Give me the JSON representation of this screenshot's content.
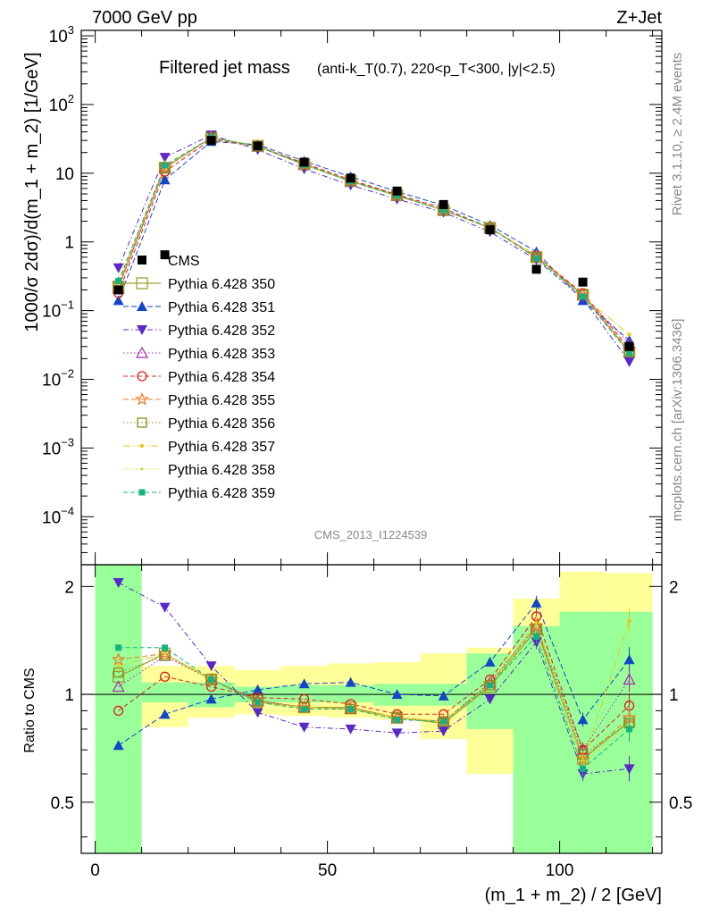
{
  "header": {
    "left": "7000 GeV pp",
    "right": "Z+Jet"
  },
  "side_labels": {
    "rivet": "Rivet 3.1.10, ≥ 2.4M events",
    "mcplots": "mcplots.cern.ch [arXiv:1306.3436]"
  },
  "watermark": "CMS_2013_I1224539",
  "chart_data": {
    "type": "line",
    "title": "Filtered jet mass",
    "title_detail": "(anti-k_T(0.7), 220<p_T<300, |y|<2.5)",
    "xlabel": "(m_1 + m_2) / 2 [GeV]",
    "ylabel": "1000/σ 2dσ)/d(m_1 + m_2) [1/GeV]",
    "ratio_ylabel": "Ratio to CMS",
    "xlim": [
      -3,
      122
    ],
    "ylim": [
      2e-05,
      1200
    ],
    "ylog": true,
    "ratio_ylim": [
      0.36,
      2.3
    ],
    "x_ticks": [
      0,
      50,
      100
    ],
    "y_ticks": [
      "10^-4",
      "10^-3",
      "10^-2",
      "10^-1",
      "1",
      "10",
      "10^2",
      "10^3"
    ],
    "ratio_ticks": [
      "0.5",
      "1",
      "2"
    ],
    "x": [
      5,
      15,
      25,
      35,
      45,
      55,
      65,
      75,
      85,
      95,
      105,
      115
    ],
    "data": {
      "name": "CMS",
      "color": "#000000",
      "values": [
        0.2,
        0.65,
        30,
        25,
        14.5,
        8.5,
        5.5,
        3.5,
        1.5,
        0.4,
        0.26,
        0.03
      ],
      "band_inner": [
        [
          0,
          10,
          0.36,
          2.3
        ],
        [
          10,
          20,
          0.95,
          1.08
        ],
        [
          20,
          30,
          0.92,
          1.08
        ],
        [
          30,
          40,
          0.95,
          1.05
        ],
        [
          40,
          50,
          0.95,
          1.06
        ],
        [
          50,
          60,
          0.95,
          1.06
        ],
        [
          60,
          70,
          0.93,
          1.07
        ],
        [
          70,
          80,
          0.93,
          1.07
        ],
        [
          80,
          90,
          0.8,
          1.3
        ],
        [
          90,
          100,
          0.36,
          1.55
        ],
        [
          100,
          110,
          0.36,
          1.7
        ],
        [
          110,
          120,
          0.36,
          1.7
        ]
      ],
      "band_outer": [
        [
          0,
          10,
          0.36,
          2.3
        ],
        [
          10,
          20,
          0.81,
          1.2
        ],
        [
          20,
          30,
          0.86,
          1.2
        ],
        [
          30,
          40,
          0.88,
          1.17
        ],
        [
          40,
          50,
          0.87,
          1.2
        ],
        [
          50,
          60,
          0.86,
          1.22
        ],
        [
          60,
          70,
          0.85,
          1.23
        ],
        [
          70,
          80,
          0.75,
          1.3
        ],
        [
          80,
          90,
          0.6,
          1.35
        ],
        [
          90,
          100,
          0.36,
          1.85
        ],
        [
          100,
          110,
          0.36,
          2.2
        ],
        [
          110,
          120,
          0.36,
          2.18
        ]
      ]
    },
    "series": [
      {
        "name": "Pythia 6.428 350",
        "color": "#a0a030",
        "marker": "square-open",
        "dash": "",
        "width": 1.2,
        "values": [
          0.22,
          12,
          33,
          25,
          13.5,
          7.7,
          4.8,
          2.9,
          1.6,
          0.6,
          0.17,
          0.025
        ],
        "ratio": [
          1.12,
          1.3,
          1.1,
          0.96,
          0.92,
          0.92,
          0.86,
          0.83,
          1.05,
          1.52,
          0.66,
          0.84
        ]
      },
      {
        "name": "Pythia 6.428 351",
        "color": "#1446c8",
        "marker": "triangle-up-filled",
        "dash": "6,3",
        "width": 1,
        "values": [
          0.14,
          8,
          29,
          26,
          15,
          8.9,
          5.4,
          3.4,
          1.75,
          0.72,
          0.14,
          0.037
        ],
        "ratio": [
          0.72,
          0.88,
          0.97,
          1.03,
          1.07,
          1.08,
          1.0,
          0.99,
          1.23,
          1.8,
          0.85,
          1.25
        ]
      },
      {
        "name": "Pythia 6.428 352",
        "color": "#5a28c8",
        "marker": "triangle-down-filled",
        "dash": "6,3,1.5,3",
        "width": 1,
        "values": [
          0.42,
          17,
          36,
          22,
          11.5,
          6.7,
          4.2,
          2.7,
          1.4,
          0.55,
          0.15,
          0.018
        ],
        "ratio": [
          2.05,
          1.75,
          1.2,
          0.89,
          0.81,
          0.8,
          0.78,
          0.79,
          0.97,
          1.4,
          0.6,
          0.62
        ]
      },
      {
        "name": "Pythia 6.428 353",
        "color": "#aa28aa",
        "marker": "triangle-up-open",
        "dash": "1.5,2.5",
        "width": 1,
        "values": [
          0.21,
          12,
          33,
          24.5,
          13.3,
          7.6,
          4.7,
          2.9,
          1.6,
          0.62,
          0.17,
          0.033
        ],
        "ratio": [
          1.05,
          1.28,
          1.1,
          0.96,
          0.92,
          0.91,
          0.86,
          0.84,
          1.08,
          1.55,
          0.7,
          1.1
        ]
      },
      {
        "name": "Pythia 6.428 354",
        "color": "#dc1e1e",
        "marker": "circle-open",
        "dash": "5,3",
        "width": 1,
        "values": [
          0.18,
          10.5,
          31,
          24.5,
          14,
          8,
          4.9,
          3.1,
          1.6,
          0.62,
          0.18,
          0.028
        ],
        "ratio": [
          0.9,
          1.12,
          1.05,
          0.98,
          0.97,
          0.94,
          0.88,
          0.88,
          1.1,
          1.65,
          0.7,
          0.93
        ]
      },
      {
        "name": "Pythia 6.428 355",
        "color": "#f07828",
        "marker": "star-open",
        "dash": "6,3",
        "width": 1,
        "values": [
          0.25,
          12.5,
          33,
          24.5,
          13.3,
          7.6,
          4.7,
          2.9,
          1.6,
          0.62,
          0.17,
          0.026
        ],
        "ratio": [
          1.25,
          1.3,
          1.1,
          0.95,
          0.92,
          0.91,
          0.86,
          0.84,
          1.07,
          1.55,
          0.66,
          0.86
        ]
      },
      {
        "name": "Pythia 6.428 356",
        "color": "#8c8c1e",
        "marker": "square-open-small",
        "dash": "1.5,2.5",
        "width": 1,
        "values": [
          0.23,
          12,
          33,
          24.5,
          13.3,
          7.6,
          4.7,
          2.9,
          1.6,
          0.6,
          0.17,
          0.025
        ],
        "ratio": [
          1.15,
          1.28,
          1.1,
          0.95,
          0.92,
          0.91,
          0.86,
          0.84,
          1.06,
          1.52,
          0.68,
          0.83
        ]
      },
      {
        "name": "Pythia 6.428 357",
        "color": "#e6c814",
        "marker": "dot",
        "dash": "8,3,1.5,3",
        "width": 1,
        "values": [
          0.24,
          12.5,
          33,
          24.5,
          13.3,
          7.6,
          4.7,
          2.9,
          1.6,
          0.62,
          0.16,
          0.045
        ],
        "ratio": [
          1.2,
          1.3,
          1.1,
          0.95,
          0.92,
          0.91,
          0.86,
          0.84,
          1.07,
          1.58,
          0.65,
          1.6
        ]
      },
      {
        "name": "Pythia 6.428 358",
        "color": "#c8dc3c",
        "marker": "dot-small",
        "dash": "1.5,2",
        "width": 1,
        "values": [
          0.24,
          12.5,
          33,
          24.5,
          13.3,
          7.6,
          4.7,
          2.9,
          1.6,
          0.6,
          0.16,
          0.025
        ],
        "ratio": [
          1.2,
          1.3,
          1.1,
          0.95,
          0.92,
          0.91,
          0.86,
          0.84,
          1.06,
          1.5,
          0.64,
          0.82
        ]
      },
      {
        "name": "Pythia 6.428 359",
        "color": "#14b482",
        "marker": "square-filled",
        "dash": "5,3",
        "width": 1,
        "values": [
          0.27,
          13,
          33,
          24.5,
          13.3,
          7.6,
          4.7,
          2.9,
          1.6,
          0.58,
          0.16,
          0.024
        ],
        "ratio": [
          1.35,
          1.35,
          1.1,
          0.95,
          0.91,
          0.91,
          0.85,
          0.84,
          1.06,
          1.45,
          0.62,
          0.8
        ]
      }
    ]
  }
}
